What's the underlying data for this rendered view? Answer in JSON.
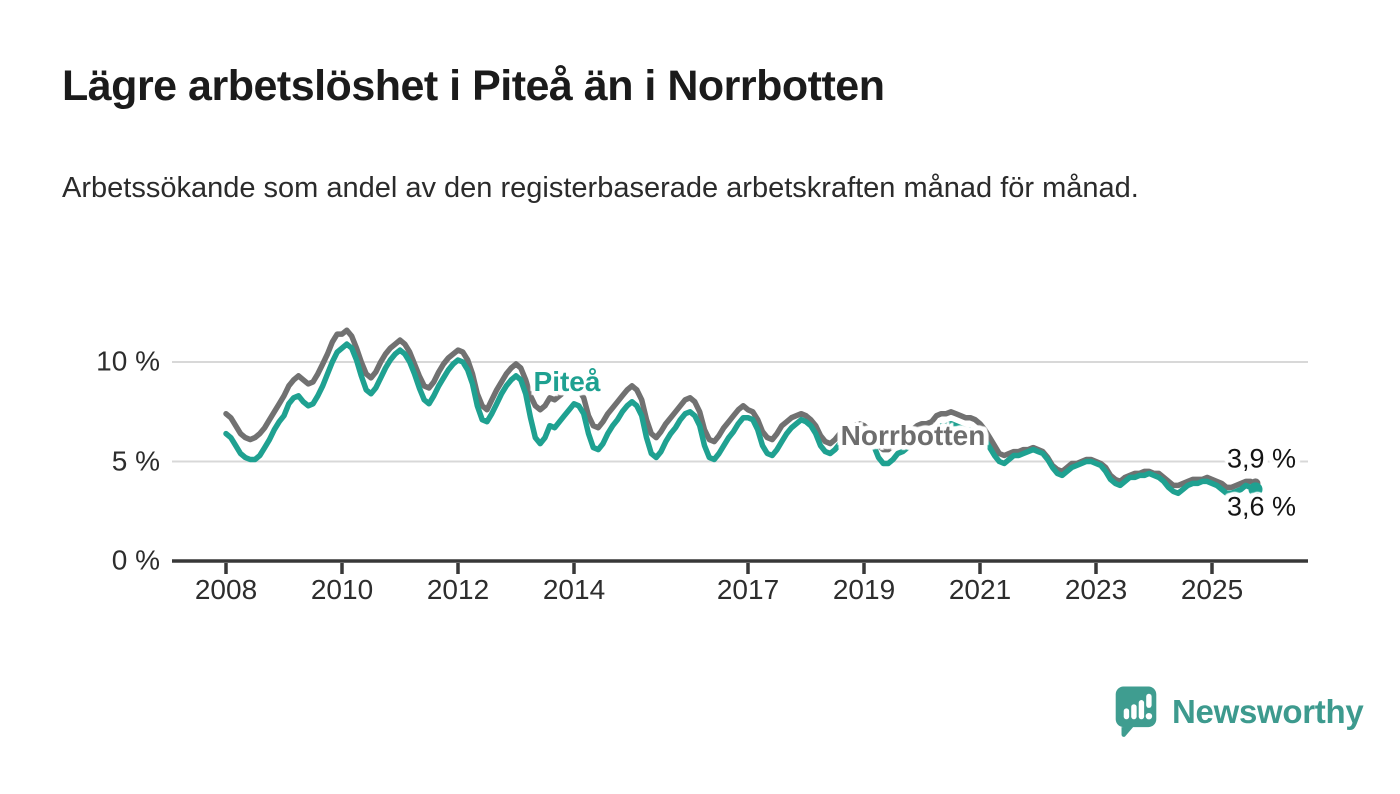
{
  "header": {
    "title": "Lägre arbetslöshet i Piteå än i Norrbotten",
    "subtitle": "Arbetssökande som andel av den registerbaserade arbetskraften månad för månad."
  },
  "footer": {
    "brand": "Newsworthy",
    "logo_color": "#3f9d90",
    "wordmark_color": "#3d9a8e"
  },
  "chart_data": {
    "type": "line",
    "title": "Lägre arbetslöshet i Piteå än i Norrbotten",
    "xlabel": "",
    "ylabel": "",
    "unit": "%",
    "grid": "horizontal",
    "legend_position": "inline-labels",
    "x_start_year": 2008,
    "x_step_months": 1,
    "x_range": [
      2008.0,
      2025.83
    ],
    "ylim": [
      0,
      12.2
    ],
    "y_ticks": [
      {
        "value": 10,
        "label": "10 %"
      },
      {
        "value": 5,
        "label": "5 %"
      },
      {
        "value": 0,
        "label": "0 %"
      }
    ],
    "x_ticks": [
      {
        "year": 2008,
        "label": "2008"
      },
      {
        "year": 2010,
        "label": "2010"
      },
      {
        "year": 2012,
        "label": "2012"
      },
      {
        "year": 2014,
        "label": "2014"
      },
      {
        "year": 2017,
        "label": "2017"
      },
      {
        "year": 2019,
        "label": "2019"
      },
      {
        "year": 2021,
        "label": "2021"
      },
      {
        "year": 2023,
        "label": "2023"
      },
      {
        "year": 2025,
        "label": "2025"
      }
    ],
    "series": [
      {
        "name": "Norrbotten",
        "color": "#717171",
        "end_value_label": "3,9 %",
        "values": [
          7.4,
          7.2,
          6.8,
          6.4,
          6.2,
          6.1,
          6.2,
          6.4,
          6.7,
          7.1,
          7.5,
          7.9,
          8.3,
          8.8,
          9.1,
          9.3,
          9.1,
          8.9,
          9.0,
          9.4,
          9.9,
          10.4,
          11.0,
          11.4,
          11.4,
          11.6,
          11.3,
          10.7,
          10.0,
          9.4,
          9.2,
          9.5,
          10.0,
          10.4,
          10.7,
          10.9,
          11.1,
          10.9,
          10.5,
          9.9,
          9.3,
          8.8,
          8.7,
          9.0,
          9.5,
          9.9,
          10.2,
          10.4,
          10.6,
          10.5,
          10.1,
          9.4,
          8.4,
          7.8,
          7.6,
          8.1,
          8.6,
          9.0,
          9.4,
          9.7,
          9.9,
          9.7,
          9.1,
          8.3,
          7.8,
          7.6,
          7.8,
          8.2,
          8.1,
          8.3,
          8.5,
          8.7,
          8.7,
          8.6,
          8.2,
          7.3,
          6.8,
          6.7,
          7.0,
          7.4,
          7.7,
          8.0,
          8.3,
          8.6,
          8.8,
          8.6,
          8.1,
          7.1,
          6.4,
          6.2,
          6.5,
          6.9,
          7.2,
          7.5,
          7.8,
          8.1,
          8.2,
          8.0,
          7.5,
          6.6,
          6.1,
          6.0,
          6.3,
          6.7,
          7.0,
          7.3,
          7.6,
          7.8,
          7.6,
          7.5,
          7.1,
          6.5,
          6.2,
          6.1,
          6.4,
          6.8,
          7.0,
          7.2,
          7.3,
          7.4,
          7.3,
          7.1,
          6.8,
          6.3,
          6.0,
          5.9,
          6.1,
          6.4,
          6.6,
          6.7,
          6.8,
          6.9,
          6.8,
          6.6,
          6.3,
          5.8,
          5.6,
          5.6,
          5.8,
          6.1,
          6.2,
          6.4,
          6.6,
          6.8,
          6.9,
          6.9,
          7.0,
          7.3,
          7.4,
          7.4,
          7.5,
          7.4,
          7.3,
          7.2,
          7.2,
          7.1,
          6.9,
          6.6,
          6.2,
          5.8,
          5.4,
          5.3,
          5.4,
          5.5,
          5.5,
          5.6,
          5.6,
          5.7,
          5.6,
          5.5,
          5.2,
          4.8,
          4.6,
          4.5,
          4.7,
          4.9,
          4.9,
          5.0,
          5.1,
          5.1,
          5.0,
          4.9,
          4.7,
          4.3,
          4.1,
          4.0,
          4.2,
          4.3,
          4.4,
          4.4,
          4.5,
          4.5,
          4.4,
          4.4,
          4.2,
          4.0,
          3.8,
          3.8,
          3.9,
          4.0,
          4.1,
          4.1,
          4.1,
          4.2,
          4.1,
          4.0,
          3.9,
          3.7,
          3.7,
          3.8,
          3.9,
          4.0,
          4.0,
          3.9
        ]
      },
      {
        "name": "Piteå",
        "color": "#1fa191",
        "end_value_label": "3,6 %",
        "values": [
          6.4,
          6.2,
          5.8,
          5.4,
          5.2,
          5.1,
          5.1,
          5.3,
          5.7,
          6.1,
          6.6,
          7.0,
          7.3,
          7.9,
          8.2,
          8.3,
          8.0,
          7.8,
          7.9,
          8.3,
          8.8,
          9.4,
          10.0,
          10.5,
          10.7,
          10.9,
          10.7,
          10.1,
          9.3,
          8.6,
          8.4,
          8.7,
          9.2,
          9.7,
          10.1,
          10.4,
          10.6,
          10.4,
          10.0,
          9.4,
          8.7,
          8.1,
          7.9,
          8.3,
          8.8,
          9.2,
          9.6,
          9.9,
          10.1,
          10.0,
          9.6,
          8.9,
          7.8,
          7.1,
          7.0,
          7.4,
          7.9,
          8.4,
          8.8,
          9.1,
          9.3,
          9.1,
          8.4,
          7.2,
          6.2,
          5.9,
          6.2,
          6.8,
          6.7,
          7.0,
          7.3,
          7.6,
          7.9,
          7.8,
          7.4,
          6.4,
          5.7,
          5.6,
          5.9,
          6.4,
          6.8,
          7.1,
          7.5,
          7.8,
          8.0,
          7.8,
          7.3,
          6.2,
          5.4,
          5.2,
          5.5,
          6.0,
          6.4,
          6.7,
          7.1,
          7.4,
          7.5,
          7.3,
          6.8,
          5.8,
          5.2,
          5.1,
          5.4,
          5.8,
          6.2,
          6.5,
          6.9,
          7.2,
          7.2,
          7.1,
          6.6,
          5.8,
          5.4,
          5.3,
          5.6,
          6.0,
          6.4,
          6.7,
          6.9,
          7.1,
          7.0,
          6.8,
          6.4,
          5.8,
          5.5,
          5.4,
          5.6,
          5.9,
          6.1,
          6.3,
          6.4,
          6.5,
          6.4,
          6.2,
          5.8,
          5.2,
          4.9,
          4.9,
          5.1,
          5.4,
          5.5,
          5.7,
          5.9,
          6.1,
          6.2,
          6.2,
          6.4,
          6.7,
          6.8,
          6.8,
          6.9,
          6.8,
          6.7,
          6.6,
          6.6,
          6.5,
          6.4,
          6.1,
          5.7,
          5.3,
          5.0,
          4.9,
          5.1,
          5.3,
          5.3,
          5.4,
          5.5,
          5.6,
          5.5,
          5.4,
          5.1,
          4.7,
          4.4,
          4.3,
          4.5,
          4.7,
          4.8,
          4.9,
          5.0,
          5.0,
          4.9,
          4.8,
          4.5,
          4.1,
          3.9,
          3.8,
          4.0,
          4.2,
          4.2,
          4.3,
          4.3,
          4.4,
          4.3,
          4.2,
          4.0,
          3.7,
          3.5,
          3.4,
          3.6,
          3.8,
          3.9,
          3.9,
          4.0,
          4.0,
          3.9,
          3.8,
          3.6,
          3.4,
          3.4,
          3.5,
          3.6,
          3.8,
          3.7,
          3.6
        ]
      }
    ],
    "annotations": {
      "pitea_label": "Piteå",
      "norrbotten_label": "Norrbotten",
      "end_value_norrbotten": "3,9 %",
      "end_value_pitea": "3,6 %"
    },
    "colors": {
      "pitea_line": "#1fa191",
      "norrbotten_line": "#717171",
      "gridline": "#d8d8d8",
      "axis": "#383838"
    }
  }
}
